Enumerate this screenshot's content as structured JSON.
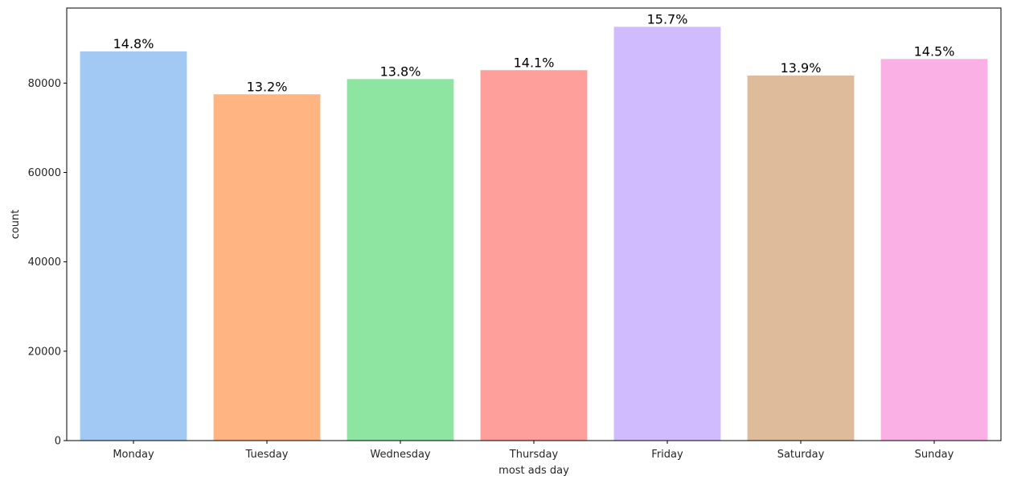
{
  "chart_data": {
    "type": "bar",
    "title": "",
    "xlabel": "most ads day",
    "ylabel": "count",
    "categories": [
      "Monday",
      "Tuesday",
      "Wednesday",
      "Thursday",
      "Friday",
      "Saturday",
      "Sunday"
    ],
    "values": [
      87100,
      77500,
      80900,
      82900,
      92600,
      81700,
      85400
    ],
    "data_labels": [
      "14.8%",
      "13.2%",
      "13.8%",
      "14.1%",
      "15.7%",
      "13.9%",
      "14.5%"
    ],
    "colors": [
      "#a1c9f4",
      "#ffb482",
      "#8de5a1",
      "#ff9f9b",
      "#d0bbff",
      "#debb9b",
      "#fab0e4"
    ],
    "ylim": [
      0,
      96800
    ],
    "yticks": [
      0,
      20000,
      40000,
      60000,
      80000
    ],
    "grid": false,
    "legend": "none"
  }
}
